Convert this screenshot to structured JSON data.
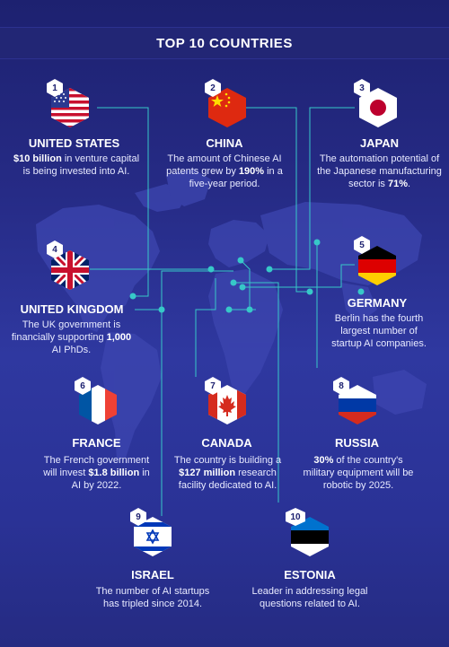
{
  "title": "TOP 10 COUNTRIES",
  "colors": {
    "line": "#37c8c8",
    "bg": "#262b86",
    "badge": "#ffffff"
  },
  "countries": [
    {
      "num": "1",
      "name": "UNITED STATES",
      "flag": "us-flag-icon",
      "desc": [
        {
          "t": "$10 billion",
          "b": true
        },
        {
          "t": " in venture capital is being invested into AI."
        }
      ]
    },
    {
      "num": "2",
      "name": "CHINA",
      "flag": "china-flag-icon",
      "desc": [
        {
          "t": "The amount of Chinese AI patents grew by "
        },
        {
          "t": "190%",
          "b": true
        },
        {
          "t": " in a five-year period."
        }
      ]
    },
    {
      "num": "3",
      "name": "JAPAN",
      "flag": "japan-flag-icon",
      "desc": [
        {
          "t": "The automation potential of the Japanese manufacturing sector is "
        },
        {
          "t": "71%",
          "b": true
        },
        {
          "t": "."
        }
      ]
    },
    {
      "num": "4",
      "name": "UNITED KINGDOM",
      "flag": "uk-flag-icon",
      "desc": [
        {
          "t": "The UK government is financially supporting "
        },
        {
          "t": "1,000",
          "b": true
        },
        {
          "t": " AI PhDs."
        }
      ]
    },
    {
      "num": "5",
      "name": "GERMANY",
      "flag": "germany-flag-icon",
      "desc": [
        {
          "t": "Berlin has the fourth largest number of startup AI companies."
        }
      ]
    },
    {
      "num": "6",
      "name": "FRANCE",
      "flag": "france-flag-icon",
      "desc": [
        {
          "t": "The French government will invest "
        },
        {
          "t": "$1.8 billion",
          "b": true
        },
        {
          "t": " in AI by 2022."
        }
      ]
    },
    {
      "num": "7",
      "name": "CANADA",
      "flag": "canada-flag-icon",
      "desc": [
        {
          "t": "The country is building a "
        },
        {
          "t": "$127 million",
          "b": true
        },
        {
          "t": " research facility dedicated to AI."
        }
      ]
    },
    {
      "num": "8",
      "name": "RUSSIA",
      "flag": "russia-flag-icon",
      "desc": [
        {
          "t": "30%",
          "b": true
        },
        {
          "t": " of the country's military equipment will be robotic by 2025."
        }
      ]
    },
    {
      "num": "9",
      "name": "ISRAEL",
      "flag": "israel-flag-icon",
      "desc": [
        {
          "t": "The number of AI startups has tripled since 2014."
        }
      ]
    },
    {
      "num": "10",
      "name": "ESTONIA",
      "flag": "estonia-flag-icon",
      "desc": [
        {
          "t": "Leader in addressing legal questions related to AI."
        }
      ]
    }
  ]
}
